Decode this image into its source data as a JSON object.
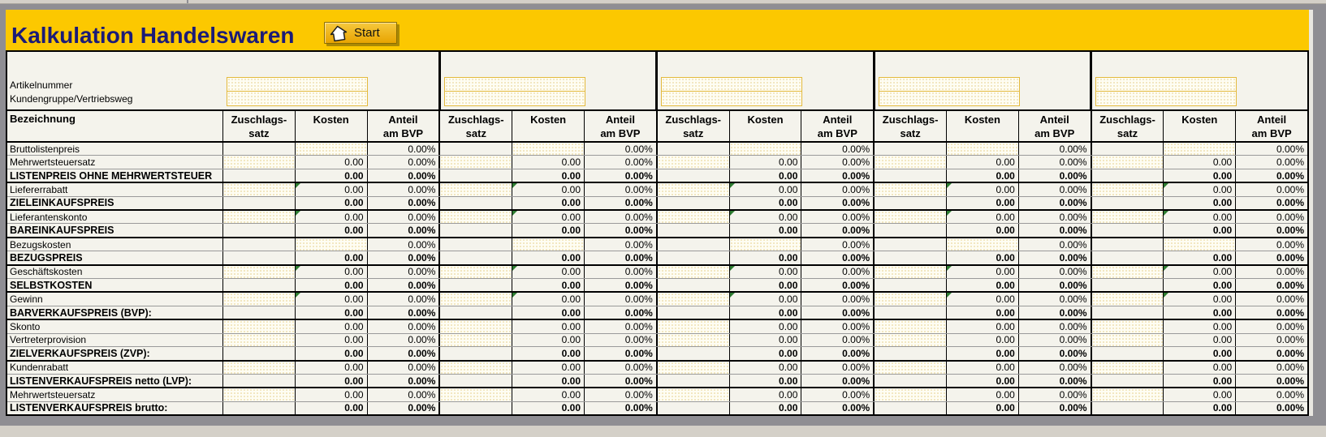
{
  "header": {
    "title": "Kalkulation Handelswaren",
    "start_button_label": "Start"
  },
  "info": {
    "labels": [
      "Artikelnummer",
      "Kundengruppe/Vertriebsweg"
    ]
  },
  "colors": {
    "titlebar_yellow": "#FCC800",
    "title_text_navy": "#1B1B78",
    "button_gold": "#E8A400",
    "input_dot_tan": "#D8B44C",
    "input_border_gold": "#E3B93C",
    "error_corner_green": "#2E7D32",
    "sheet_background": "#F4F3EC"
  },
  "table": {
    "group_count": 5,
    "label_header": "Bezeichnung",
    "column_headers": {
      "zuschlag": [
        "Zuschlags-",
        "satz"
      ],
      "kosten": [
        "Kosten"
      ],
      "anteil": [
        "Anteil",
        "am BVP"
      ]
    },
    "rows": [
      {
        "label": "Bruttolistenpreis",
        "bold": false,
        "zus": "empty",
        "kosten": "input",
        "kosten_value": "",
        "anteil_value": "0.00%",
        "green": false,
        "thick": false
      },
      {
        "label": "Mehrwertsteuersatz",
        "bold": false,
        "zus": "dotted",
        "kosten": "value",
        "kosten_value": "0.00",
        "anteil_value": "0.00%",
        "green": false,
        "thick": false
      },
      {
        "label": "LISTENPREIS OHNE MEHRWERTSTEUER",
        "bold": true,
        "zus": "empty",
        "kosten": "value",
        "kosten_value": "0.00",
        "anteil_value": "0.00%",
        "green": false,
        "thick": true
      },
      {
        "label": "Liefererrabatt",
        "bold": false,
        "zus": "dotted",
        "kosten": "value",
        "kosten_value": "0.00",
        "anteil_value": "0.00%",
        "green": true,
        "thick": false
      },
      {
        "label": "ZIELEINKAUFSPREIS",
        "bold": true,
        "zus": "empty",
        "kosten": "value",
        "kosten_value": "0.00",
        "anteil_value": "0.00%",
        "green": false,
        "thick": true
      },
      {
        "label": "Lieferantenskonto",
        "bold": false,
        "zus": "dotted",
        "kosten": "value",
        "kosten_value": "0.00",
        "anteil_value": "0.00%",
        "green": true,
        "thick": false
      },
      {
        "label": "BAREINKAUFSPREIS",
        "bold": true,
        "zus": "empty",
        "kosten": "value",
        "kosten_value": "0.00",
        "anteil_value": "0.00%",
        "green": false,
        "thick": true
      },
      {
        "label": "Bezugskosten",
        "bold": false,
        "zus": "empty",
        "kosten": "input",
        "kosten_value": "",
        "anteil_value": "0.00%",
        "green": false,
        "thick": false
      },
      {
        "label": "BEZUGSPREIS",
        "bold": true,
        "zus": "empty",
        "kosten": "value",
        "kosten_value": "0.00",
        "anteil_value": "0.00%",
        "green": false,
        "thick": true
      },
      {
        "label": "Geschäftskosten",
        "bold": false,
        "zus": "dotted",
        "kosten": "value",
        "kosten_value": "0.00",
        "anteil_value": "0.00%",
        "green": true,
        "thick": false
      },
      {
        "label": "SELBSTKOSTEN",
        "bold": true,
        "zus": "empty",
        "kosten": "value",
        "kosten_value": "0.00",
        "anteil_value": "0.00%",
        "green": false,
        "thick": true
      },
      {
        "label": "Gewinn",
        "bold": false,
        "zus": "dotted",
        "kosten": "value",
        "kosten_value": "0.00",
        "anteil_value": "0.00%",
        "green": true,
        "thick": false
      },
      {
        "label": "BARVERKAUFSPREIS (BVP):",
        "bold": true,
        "zus": "empty",
        "kosten": "value",
        "kosten_value": "0.00",
        "anteil_value": "0.00%",
        "green": false,
        "thick": true
      },
      {
        "label": "Skonto",
        "bold": false,
        "zus": "dotted",
        "kosten": "value",
        "kosten_value": "0.00",
        "anteil_value": "0.00%",
        "green": false,
        "thick": false
      },
      {
        "label": "Vertreterprovision",
        "bold": false,
        "zus": "dotted",
        "kosten": "value",
        "kosten_value": "0.00",
        "anteil_value": "0.00%",
        "green": false,
        "thick": false
      },
      {
        "label": "ZIELVERKAUFSPREIS (ZVP):",
        "bold": true,
        "zus": "empty",
        "kosten": "value",
        "kosten_value": "0.00",
        "anteil_value": "0.00%",
        "green": false,
        "thick": true
      },
      {
        "label": "Kundenrabatt",
        "bold": false,
        "zus": "dotted",
        "kosten": "value",
        "kosten_value": "0.00",
        "anteil_value": "0.00%",
        "green": false,
        "thick": false
      },
      {
        "label": "LISTENVERKAUFSPREIS netto (LVP):",
        "bold": true,
        "zus": "empty",
        "kosten": "value",
        "kosten_value": "0.00",
        "anteil_value": "0.00%",
        "green": false,
        "thick": true
      },
      {
        "label": "Mehrwertsteuersatz",
        "bold": false,
        "zus": "dotted",
        "kosten": "value",
        "kosten_value": "0.00",
        "anteil_value": "0.00%",
        "green": false,
        "thick": false
      },
      {
        "label": "LISTENVERKAUFSPREIS brutto:",
        "bold": true,
        "zus": "empty",
        "kosten": "value",
        "kosten_value": "0.00",
        "anteil_value": "0.00%",
        "green": false,
        "thick": true
      }
    ]
  }
}
